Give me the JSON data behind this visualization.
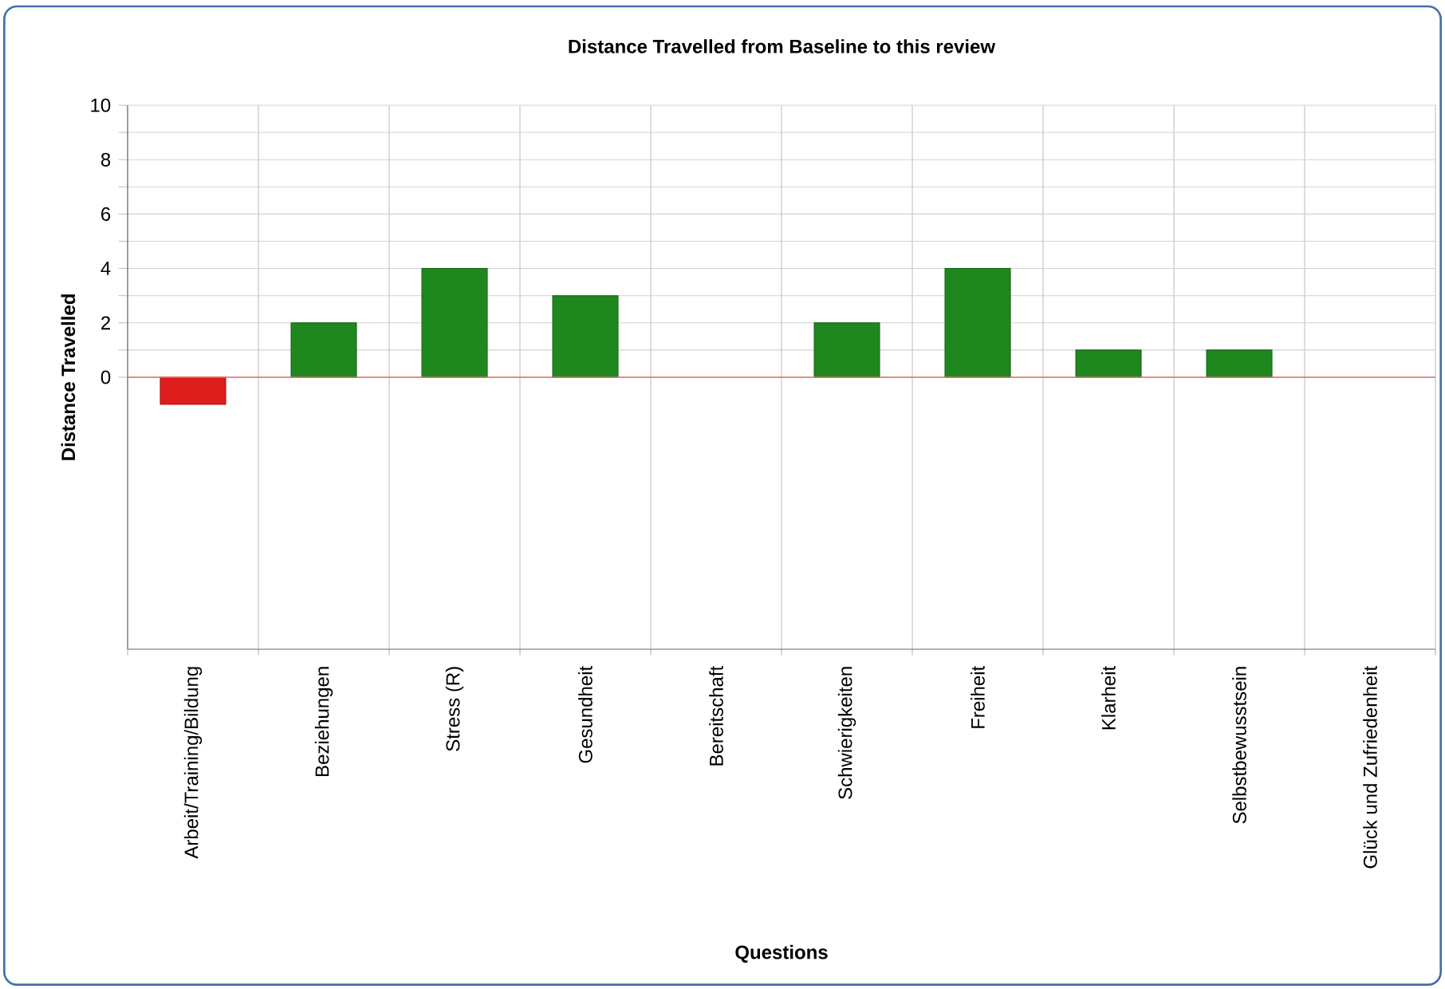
{
  "chart_data": {
    "type": "bar",
    "title": "Distance Travelled from Baseline to this review",
    "xlabel": "Questions",
    "ylabel": "Distance Travelled",
    "categories": [
      "Arbeit/Training/Bildung",
      "Beziehungen",
      "Stress (R)",
      "Gesundheit",
      "Bereitschaft",
      "Schwierigkeiten",
      "Freiheit",
      "Klarheit",
      "Selbstbewusstsein",
      "Glück und Zufriedenheit"
    ],
    "values": [
      -1,
      2,
      4,
      3,
      0,
      2,
      4,
      1,
      1,
      0
    ],
    "colors": [
      "#dd1c1c",
      "#1e881e",
      "#1e881e",
      "#1e881e",
      "#1e881e",
      "#1e881e",
      "#1e881e",
      "#1e881e",
      "#1e881e",
      "#1e881e"
    ],
    "ylim": [
      -10,
      10
    ],
    "yticks": [
      0,
      {
        "value": 1,
        "label": null
      },
      2,
      {
        "value": 3,
        "label": null
      },
      4,
      {
        "value": 5,
        "label": null
      },
      6,
      {
        "value": 7,
        "label": null
      },
      8,
      {
        "value": 9,
        "label": null
      },
      10
    ],
    "grid": true,
    "ref_lines": [
      {
        "axis": "y",
        "value": 0,
        "color": "#e07070"
      }
    ]
  }
}
